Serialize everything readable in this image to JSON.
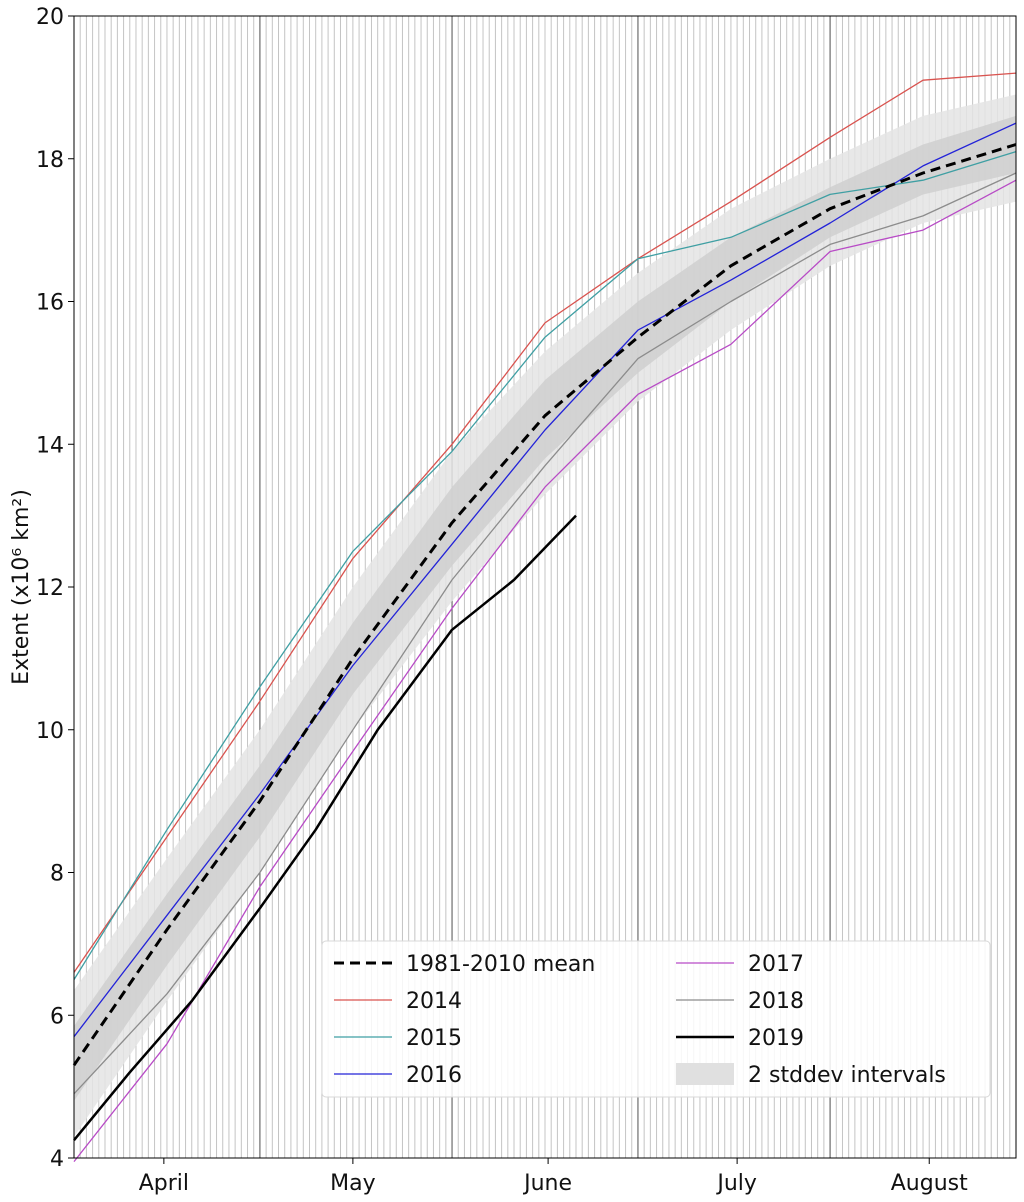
{
  "chart_data": {
    "type": "line",
    "title": "",
    "xlabel": "",
    "ylabel": "Extent (x10⁶ km²)",
    "ylim": [
      4,
      20
    ],
    "yticks": [
      4,
      6,
      8,
      10,
      12,
      14,
      16,
      18,
      20
    ],
    "x_unit": "day (1 = 1 April)",
    "xlim": [
      1,
      153
    ],
    "month_labels": [
      {
        "label": "April",
        "center_day": 15.5
      },
      {
        "label": "May",
        "center_day": 46
      },
      {
        "label": "June",
        "center_day": 77.5
      },
      {
        "label": "July",
        "center_day": 108
      },
      {
        "label": "August",
        "center_day": 139
      }
    ],
    "month_boundaries_day": [
      31,
      62,
      92,
      123
    ],
    "daily_gridlines": true,
    "band_2stddev": {
      "name": "2 stddev intervals",
      "x": [
        1,
        16,
        31,
        46,
        62,
        77,
        92,
        107,
        123,
        138,
        153
      ],
      "inner_lower": [
        4.8,
        6.7,
        8.5,
        10.5,
        12.3,
        13.8,
        15.0,
        16.0,
        16.9,
        17.5,
        17.8
      ],
      "inner_upper": [
        5.85,
        7.7,
        9.5,
        11.5,
        13.4,
        14.9,
        16.0,
        16.9,
        17.6,
        18.2,
        18.6
      ],
      "outer_lower": [
        4.3,
        6.2,
        8.0,
        10.0,
        11.8,
        13.3,
        14.6,
        15.6,
        16.5,
        17.1,
        17.4
      ],
      "outer_upper": [
        6.35,
        8.2,
        10.0,
        12.0,
        13.9,
        15.3,
        16.4,
        17.3,
        18.0,
        18.6,
        18.9
      ]
    },
    "series": [
      {
        "name": "1981-2010 mean",
        "color": "#000000",
        "dash": true,
        "width": 3,
        "x": [
          1,
          16,
          31,
          46,
          62,
          77,
          92,
          107,
          123,
          138,
          153
        ],
        "y": [
          5.3,
          7.2,
          9.0,
          11.0,
          12.9,
          14.4,
          15.5,
          16.5,
          17.3,
          17.8,
          18.2
        ]
      },
      {
        "name": "2014",
        "color": "#d9534f",
        "dash": false,
        "width": 1.3,
        "x": [
          1,
          16,
          31,
          46,
          62,
          77,
          92,
          107,
          123,
          138,
          153
        ],
        "y": [
          6.6,
          8.5,
          10.4,
          12.4,
          14.0,
          15.7,
          16.6,
          17.4,
          18.3,
          19.1,
          19.2
        ]
      },
      {
        "name": "2015",
        "color": "#3f9fa3",
        "dash": false,
        "width": 1.3,
        "x": [
          1,
          16,
          31,
          46,
          62,
          77,
          92,
          107,
          123,
          138,
          153
        ],
        "y": [
          6.5,
          8.6,
          10.6,
          12.5,
          13.9,
          15.5,
          16.6,
          16.9,
          17.5,
          17.7,
          18.1
        ]
      },
      {
        "name": "2016",
        "color": "#2323d8",
        "dash": false,
        "width": 1.3,
        "x": [
          1,
          16,
          31,
          46,
          62,
          77,
          92,
          107,
          123,
          138,
          153
        ],
        "y": [
          5.7,
          7.4,
          9.1,
          10.9,
          12.6,
          14.2,
          15.6,
          16.3,
          17.1,
          17.9,
          18.5
        ]
      },
      {
        "name": "2017",
        "color": "#b84bc6",
        "dash": false,
        "width": 1.3,
        "x": [
          1,
          16,
          31,
          46,
          62,
          77,
          92,
          107,
          123,
          138,
          153
        ],
        "y": [
          3.95,
          5.6,
          7.8,
          9.7,
          11.7,
          13.4,
          14.7,
          15.4,
          16.7,
          17.0,
          17.7
        ]
      },
      {
        "name": "2018",
        "color": "#8c8c8c",
        "dash": false,
        "width": 1.3,
        "x": [
          1,
          16,
          31,
          46,
          62,
          77,
          92,
          107,
          123,
          138,
          153
        ],
        "y": [
          4.9,
          6.3,
          8.0,
          10.0,
          12.1,
          13.7,
          15.2,
          16.0,
          16.8,
          17.2,
          17.8
        ]
      },
      {
        "name": "2019",
        "color": "#000000",
        "dash": false,
        "width": 2.5,
        "x": [
          1,
          10,
          20,
          31,
          40,
          50,
          62,
          72,
          82
        ],
        "y": [
          4.25,
          5.2,
          6.2,
          7.5,
          8.6,
          10.0,
          11.4,
          12.1,
          13.0
        ]
      }
    ],
    "legend": {
      "placement": "lower-right",
      "columns": [
        [
          "1981-2010 mean",
          "2014",
          "2015",
          "2016"
        ],
        [
          "2017",
          "2018",
          "2019",
          "2 stddev intervals"
        ]
      ]
    },
    "grid": true
  }
}
